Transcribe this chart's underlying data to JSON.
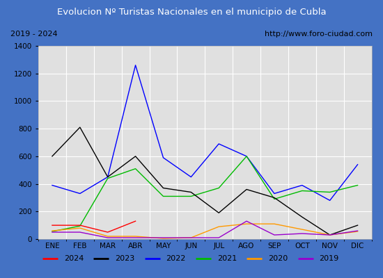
{
  "title": "Evolucion Nº Turistas Nacionales en el municipio de Cubla",
  "subtitle_left": "2019 - 2024",
  "subtitle_right": "http://www.foro-ciudad.com",
  "months": [
    "ENE",
    "FEB",
    "MAR",
    "ABR",
    "MAY",
    "JUN",
    "JUL",
    "AGO",
    "SEP",
    "OCT",
    "NOV",
    "DIC"
  ],
  "ylim": [
    0,
    1400
  ],
  "yticks": [
    0,
    200,
    400,
    600,
    800,
    1000,
    1200,
    1400
  ],
  "series": {
    "2024": {
      "color": "#ff0000",
      "data": [
        100,
        100,
        50,
        130,
        null,
        null,
        null,
        null,
        null,
        null,
        null,
        null
      ]
    },
    "2023": {
      "color": "#000000",
      "data": [
        600,
        810,
        450,
        600,
        370,
        340,
        190,
        360,
        300,
        160,
        30,
        100
      ]
    },
    "2022": {
      "color": "#0000ff",
      "data": [
        390,
        330,
        450,
        1260,
        590,
        450,
        690,
        600,
        330,
        390,
        280,
        540
      ]
    },
    "2021": {
      "color": "#00bb00",
      "data": [
        55,
        95,
        440,
        510,
        310,
        310,
        370,
        600,
        290,
        350,
        340,
        390
      ]
    },
    "2020": {
      "color": "#ff9900",
      "data": [
        60,
        80,
        20,
        20,
        5,
        10,
        90,
        110,
        110,
        70,
        30,
        55
      ]
    },
    "2019": {
      "color": "#9900cc",
      "data": [
        50,
        50,
        10,
        10,
        10,
        10,
        10,
        130,
        30,
        40,
        30,
        60
      ]
    }
  },
  "title_bg_color": "#4472c4",
  "title_font_color": "#ffffff",
  "subtitle_bg_color": "#e8e8e8",
  "plot_bg_color": "#e0e0e0",
  "grid_color": "#ffffff",
  "outer_bg_color": "#4472c4",
  "legend_order": [
    "2024",
    "2023",
    "2022",
    "2021",
    "2020",
    "2019"
  ]
}
